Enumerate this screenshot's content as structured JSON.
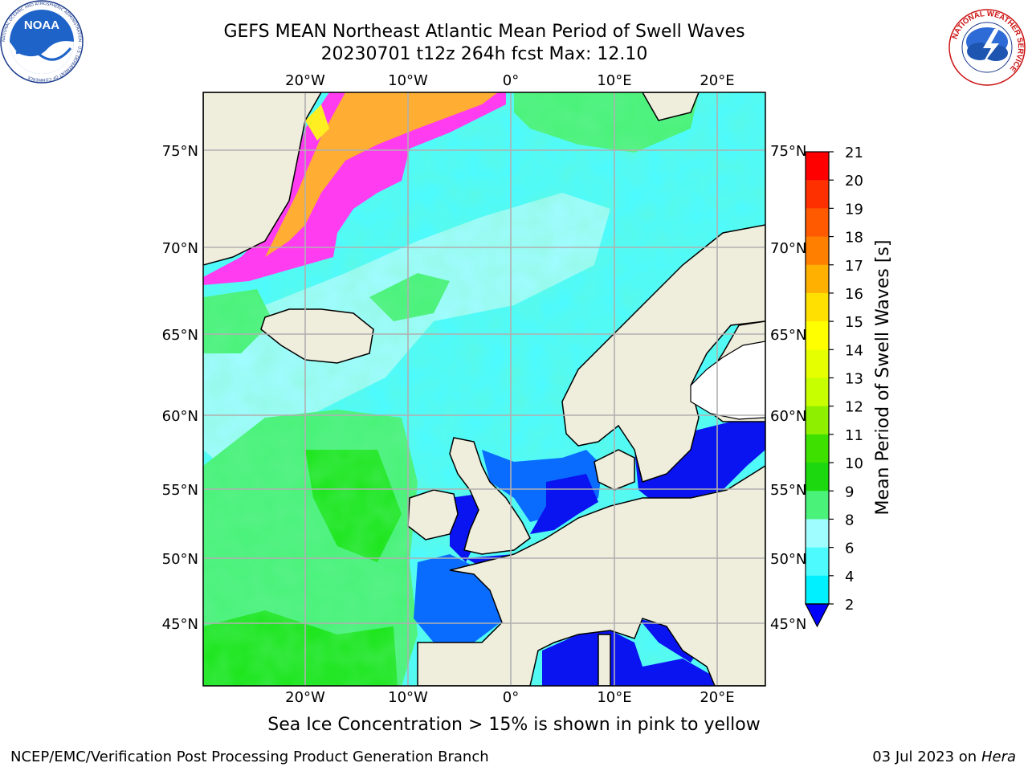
{
  "header": {
    "title_line1": "GEFS MEAN Northeast Atlantic Mean Period of Swell Waves",
    "title_line2": "20230701 t12z 264h fcst   Max: 12.10"
  },
  "logos": {
    "left": "NOAA",
    "left_ring_text": "NATIONAL OCEANIC AND ATMOSPHERIC ADMINISTRATION · U.S. DEPARTMENT OF COMMERCE",
    "right_ring_text": "NATIONAL WEATHER SERVICE"
  },
  "map": {
    "lon_labels": [
      "20°W",
      "10°W",
      "0°",
      "10°E",
      "20°E"
    ],
    "lat_labels": [
      "75°N",
      "70°N",
      "65°N",
      "60°N",
      "55°N",
      "50°N",
      "45°N"
    ],
    "colors": {
      "land": "#efeddc",
      "ocean_cyan": "#4dfbff",
      "ocean_pale": "#9ffcff",
      "ocean_green": "#4af27a",
      "ocean_bright_green": "#1fe61f",
      "ocean_blue": "#0a6cff",
      "ocean_deep_blue": "#0a14f0",
      "ice_pink": "#ff3cf0",
      "ice_orange": "#ffae33",
      "ice_yellow": "#ffee22",
      "grid": "#b0b0b0"
    }
  },
  "colorbar": {
    "label": "Mean Period of Swell Waves [s]",
    "ticks": [
      "21",
      "20",
      "19",
      "18",
      "17",
      "16",
      "15",
      "14",
      "13",
      "12",
      "11",
      "10",
      "9",
      "8",
      "6",
      "4",
      "2"
    ],
    "colors": [
      "#ff0000",
      "#ff3000",
      "#ff5a00",
      "#ff8000",
      "#ffb000",
      "#ffe000",
      "#ffff00",
      "#e6ff00",
      "#c8ff00",
      "#8ef000",
      "#3ee000",
      "#1cd80e",
      "#4af27a",
      "#9ffcff",
      "#4dfbff",
      "#00f0ff",
      "#0a7cff",
      "#0000ff"
    ]
  },
  "caption": "Sea Ice Concentration > 15% is shown in pink to yellow",
  "footer": {
    "left": "NCEP/EMC/Verification Post Processing Product Generation Branch",
    "right_date": "03 Jul 2023 on ",
    "right_host": "Hera"
  }
}
